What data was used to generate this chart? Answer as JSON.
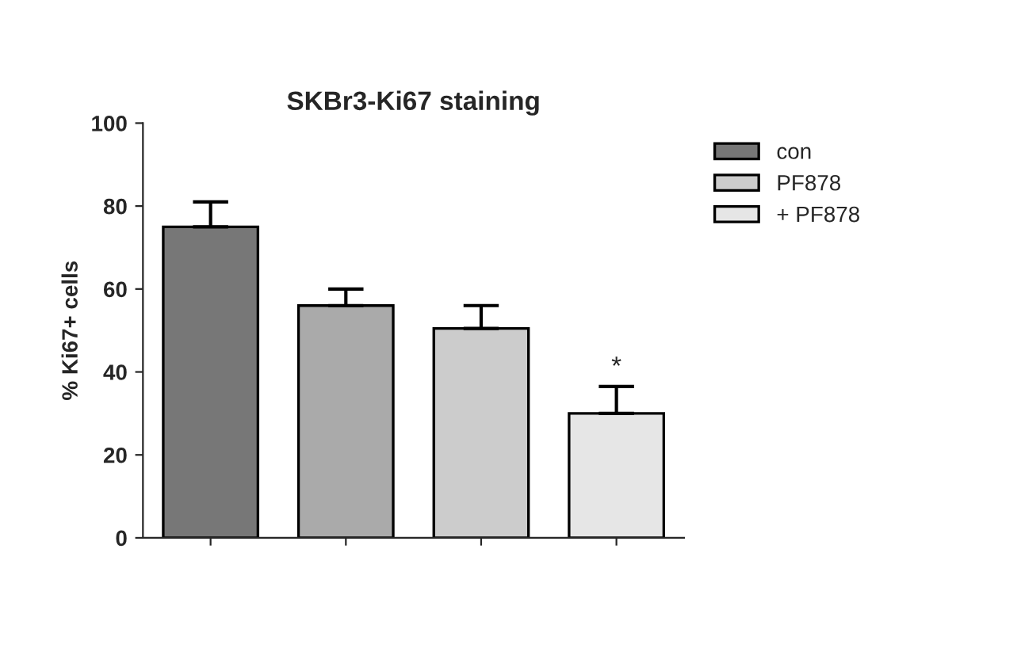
{
  "chart_data": {
    "type": "bar",
    "title": "SKBr3-Ki67 staining",
    "ylabel": "% Ki67+ cells",
    "categories": [
      null,
      null,
      null,
      null
    ],
    "series": [
      {
        "name": "con",
        "color": "#777777",
        "values": [
          75,
          null,
          null,
          null
        ],
        "errors": [
          [
            75,
            81
          ],
          null,
          null,
          null
        ]
      },
      {
        "color": "#aaaaaa",
        "values": [
          null,
          56,
          null,
          null
        ],
        "errors": [
          null,
          [
            56,
            60
          ],
          null,
          null
        ]
      },
      {
        "name": "PF878",
        "color": "#cccccc",
        "values": [
          null,
          null,
          50.5,
          null
        ],
        "errors": [
          null,
          null,
          [
            50.5,
            56
          ],
          null
        ]
      },
      {
        "name": "+ PF878",
        "color": "#e6e6e6",
        "values": [
          null,
          null,
          null,
          30
        ],
        "errors": [
          null,
          null,
          null,
          [
            30,
            36.5
          ]
        ]
      }
    ],
    "annotations": [
      {
        "text": "*",
        "y": 38
      }
    ],
    "ylim": [
      0,
      100
    ],
    "yticks": [
      0,
      20,
      40,
      60,
      80,
      100
    ],
    "grid": false,
    "legend": "top right"
  }
}
